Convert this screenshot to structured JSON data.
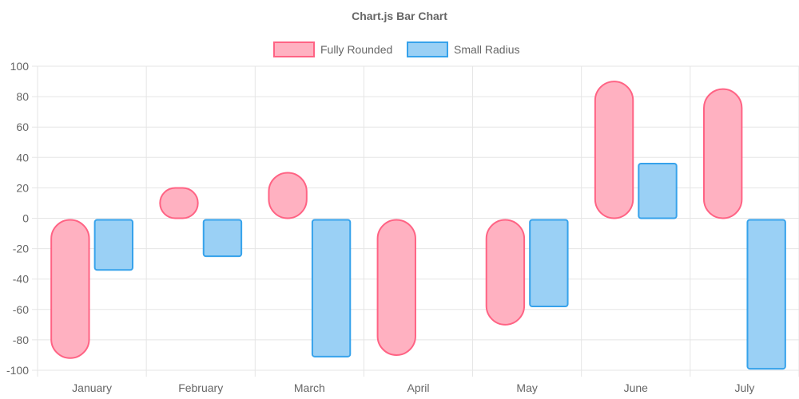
{
  "chart_data": {
    "type": "bar",
    "title": "Chart.js Bar Chart",
    "categories": [
      "January",
      "February",
      "March",
      "April",
      "May",
      "June",
      "July"
    ],
    "ylim": [
      -100,
      100
    ],
    "yticks": [
      100,
      80,
      60,
      40,
      20,
      0,
      -20,
      -40,
      -60,
      -80,
      -100
    ],
    "grid": true,
    "legend_position": "top",
    "series": [
      {
        "name": "Fully Rounded",
        "values": [
          -92,
          21,
          31,
          -90,
          -70,
          91,
          86
        ],
        "fill": "#ffb1c1",
        "stroke": "#ff6384",
        "corner_style": "fully-rounded"
      },
      {
        "name": "Small Radius",
        "values": [
          -34,
          -25,
          -91,
          null,
          -58,
          37,
          -99
        ],
        "fill": "#9ad0f5",
        "stroke": "#36a2eb",
        "corner_style": "small-radius"
      }
    ]
  }
}
